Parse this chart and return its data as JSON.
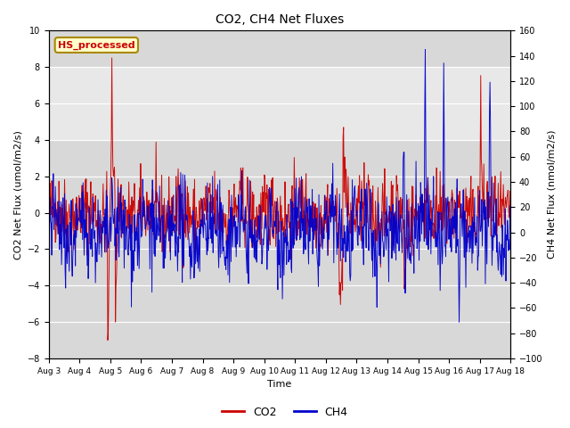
{
  "title": "CO2, CH4 Net Fluxes",
  "xlabel": "Time",
  "ylabel_left": "CO2 Net Flux (umol/m2/s)",
  "ylabel_right": "CH4 Net Flux (nmol/m2/s)",
  "ylim_left": [
    -8,
    10
  ],
  "ylim_right": [
    -100,
    160
  ],
  "yticks_left": [
    -8,
    -6,
    -4,
    -2,
    0,
    2,
    4,
    6,
    8,
    10
  ],
  "yticks_right": [
    -100,
    -80,
    -60,
    -40,
    -20,
    0,
    20,
    40,
    60,
    80,
    100,
    120,
    140,
    160
  ],
  "co2_color": "#cc0000",
  "ch4_color": "#0000cc",
  "label_box_text": "HS_processed",
  "label_box_facecolor": "#ffffcc",
  "label_box_edgecolor": "#aa8800",
  "label_box_textcolor": "#cc0000",
  "legend_co2": "CO2",
  "legend_ch4": "CH4",
  "band_ymin": 4,
  "band_ymax": 8,
  "band_color": "#e8e8e8",
  "background_color": "#d8d8d8",
  "n_points": 900,
  "date_start_day": 3,
  "date_end_day": 18,
  "xtick_days": [
    3,
    4,
    5,
    6,
    7,
    8,
    9,
    10,
    11,
    12,
    13,
    14,
    15,
    16,
    17,
    18
  ],
  "seed": 42
}
